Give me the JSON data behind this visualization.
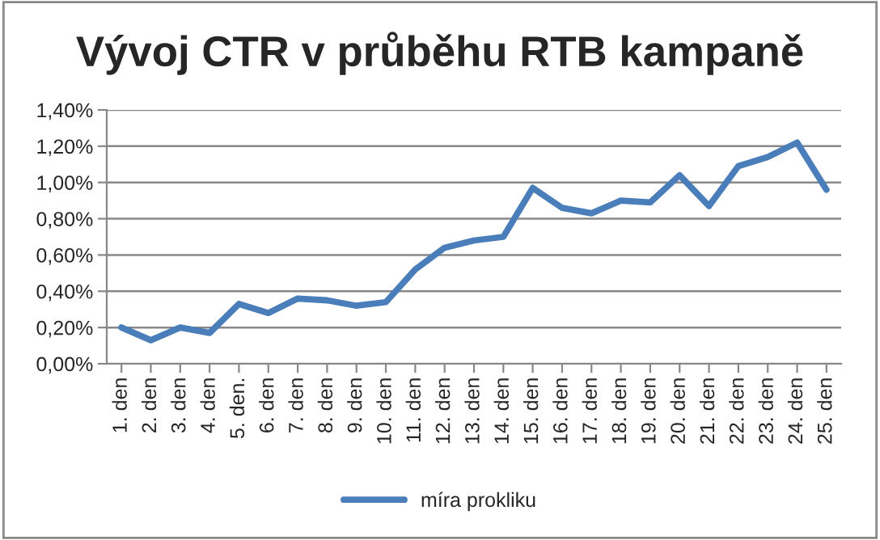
{
  "chart_data": {
    "type": "line",
    "title": "Vývoj CTR v průběhu RTB kampaně",
    "categories": [
      "1. den",
      "2. den",
      "3. den",
      "4. den",
      "5. den.",
      "6. den",
      "7. den",
      "8. den",
      "9. den",
      "10. den",
      "11. den",
      "12. den",
      "13. den",
      "14. den",
      "15. den",
      "16. den",
      "17. den",
      "18. den",
      "19. den",
      "20. den",
      "21. den",
      "22. den",
      "23. den",
      "24. den",
      "25. den"
    ],
    "series": [
      {
        "name": "míra prokliku",
        "color": "#4a7ebb",
        "values": [
          0.2,
          0.13,
          0.2,
          0.17,
          0.33,
          0.28,
          0.36,
          0.35,
          0.32,
          0.34,
          0.52,
          0.64,
          0.68,
          0.7,
          0.97,
          0.86,
          0.83,
          0.9,
          0.89,
          1.04,
          0.87,
          1.09,
          1.14,
          1.22,
          0.96
        ]
      }
    ],
    "ylim": [
      0,
      1.4
    ],
    "yticks": [
      {
        "value": 0,
        "label": "0,00%"
      },
      {
        "value": 0.2,
        "label": "0,20%"
      },
      {
        "value": 0.4,
        "label": "0,40%"
      },
      {
        "value": 0.6,
        "label": "0,60%"
      },
      {
        "value": 0.8,
        "label": "0,80%"
      },
      {
        "value": 1.0,
        "label": "1,00%"
      },
      {
        "value": 1.2,
        "label": "1,20%"
      },
      {
        "value": 1.4,
        "label": "1,40%"
      }
    ],
    "grid": "y",
    "legend": "bottom",
    "marker": "none",
    "line_style": "solid"
  }
}
